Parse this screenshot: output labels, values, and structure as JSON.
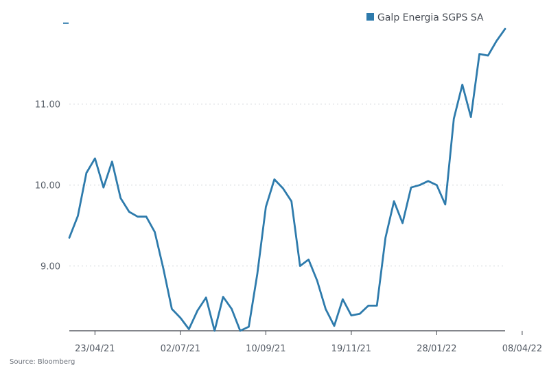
{
  "chart_data": {
    "type": "line",
    "title": "",
    "xlabel": "",
    "ylabel": "",
    "x_tick_labels": [
      "23/04/21",
      "02/07/21",
      "10/09/21",
      "19/11/21",
      "28/01/22",
      "08/04/22"
    ],
    "x_tick_positions": [
      3,
      13,
      23,
      33,
      43,
      53
    ],
    "y_ticks": [
      9,
      10,
      11,
      12
    ],
    "y_tick_labels": [
      "9.00",
      "10.00",
      "11.00",
      "-"
    ],
    "ylim": [
      8.2,
      12.1
    ],
    "grid": "horizontal dotted",
    "legend_position": "top-right",
    "series": [
      {
        "name": "Galp Energia SGPS SA",
        "color": "#2e7bac",
        "values": [
          9.35,
          9.62,
          10.15,
          10.33,
          9.97,
          10.29,
          9.84,
          9.67,
          9.61,
          9.61,
          9.42,
          8.97,
          8.47,
          8.36,
          8.22,
          8.45,
          8.61,
          8.2,
          8.62,
          8.47,
          8.2,
          8.25,
          8.9,
          9.73,
          10.07,
          9.96,
          9.8,
          9.0,
          9.08,
          8.82,
          8.47,
          8.26,
          8.59,
          8.39,
          8.41,
          8.51,
          8.51,
          9.35,
          9.8,
          9.53,
          9.97,
          10.0,
          10.05,
          10.0,
          9.76,
          10.82,
          11.24,
          10.84,
          11.62,
          11.6,
          11.78,
          11.93
        ]
      }
    ]
  },
  "legend": {
    "label": "Galp Energia SGPS SA",
    "color": "#2e7bac"
  },
  "source": "Source: Bloomberg"
}
